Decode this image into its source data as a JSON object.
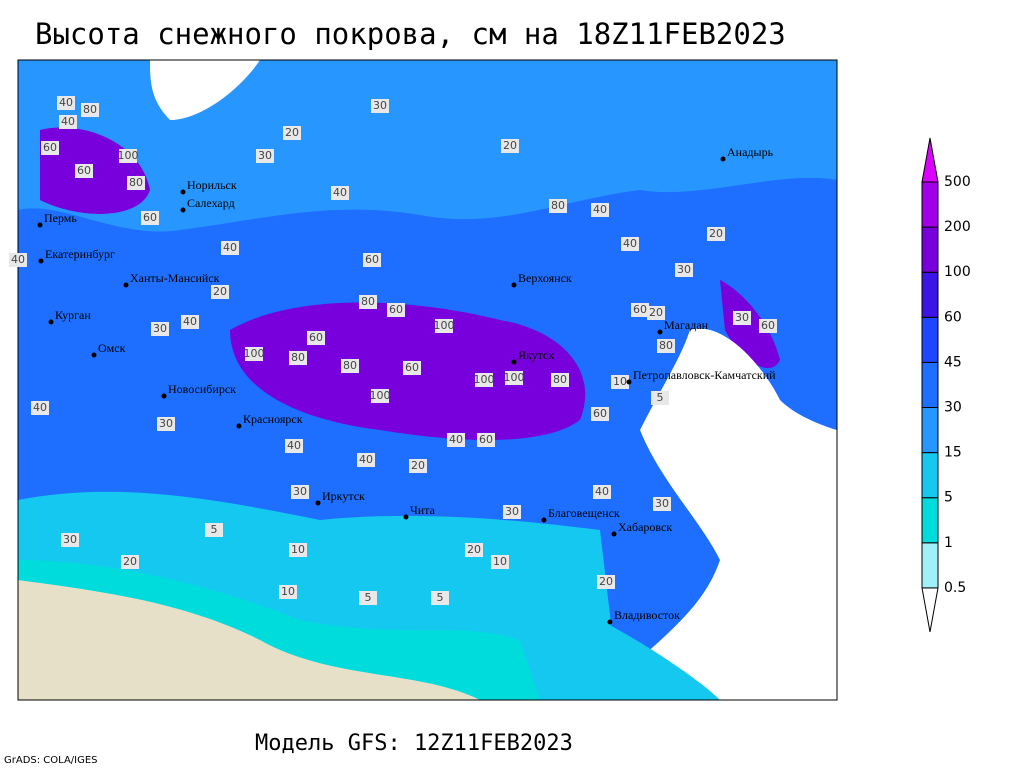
{
  "title": "Высота снежного покрова, см на 18Z11FEB2023",
  "subtitle": "Модель GFS: 12Z11FEB2023",
  "credit": "GrADS: COLA/IGES",
  "legend": {
    "labels": [
      "0.5",
      "1",
      "5",
      "15",
      "30",
      "45",
      "60",
      "100",
      "200",
      "500"
    ],
    "colors": [
      "#ffffff",
      "#a0f0fa",
      "#00dcdc",
      "#14c8f0",
      "#2896ff",
      "#1e6eff",
      "#1e46ff",
      "#3c14e6",
      "#7800dc",
      "#a000e6",
      "#dc00ff"
    ]
  },
  "cities": [
    "Норильск",
    "Салехард",
    "Пермь",
    "Екатеринбург",
    "Ханты-Мансийск",
    "Курган",
    "Омск",
    "Новосибирск",
    "Красноярск",
    "Иркутск",
    "Чита",
    "Верхоянск",
    "Якутск",
    "Магадан",
    "Анадырь",
    "Петропавловск-Камчатский",
    "Благовещенск",
    "Хабаровск",
    "Владивосток"
  ],
  "contour_labels": [
    "40",
    "80",
    "40",
    "60",
    "100",
    "80",
    "60",
    "30",
    "20",
    "30",
    "20",
    "40",
    "60",
    "40",
    "40",
    "20",
    "40",
    "60",
    "30",
    "40",
    "60",
    "80",
    "100",
    "100",
    "80",
    "60",
    "80",
    "60",
    "100",
    "100",
    "80",
    "100",
    "60",
    "40",
    "30",
    "60",
    "40",
    "40",
    "20",
    "30",
    "10",
    "20",
    "30",
    "5",
    "10",
    "20",
    "30",
    "5",
    "10",
    "5",
    "20",
    "30",
    "40",
    "60",
    "80",
    "40",
    "30",
    "20",
    "20",
    "10",
    "5",
    "30",
    "60",
    "80",
    "40"
  ]
}
